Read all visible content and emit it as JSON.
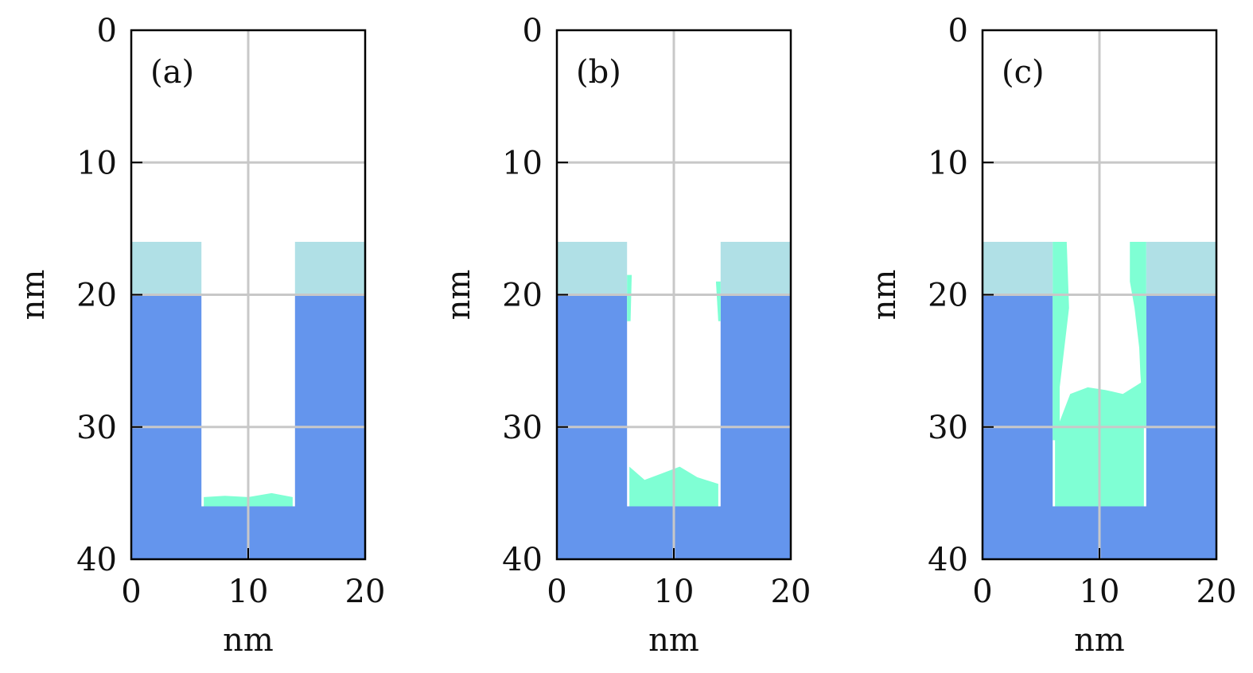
{
  "colors": {
    "substrate": "#6495ED",
    "mask": "#B0E0E6",
    "deposit": "#7FFFD4",
    "grid": "#C8C8C8",
    "frame": "#000000",
    "particle": "#222222"
  },
  "chart_data": [
    {
      "type": "heatmap",
      "panel_label": "(a)",
      "xlabel": "nm",
      "ylabel": "nm",
      "xlim": [
        0,
        20
      ],
      "ylim": [
        40,
        0
      ],
      "y_inverted": true,
      "xticks": [
        "0",
        "10",
        "20"
      ],
      "yticks": [
        "0",
        "10",
        "20",
        "30",
        "40"
      ],
      "grid": true,
      "regions": {
        "mask": {
          "y_top": 16,
          "y_bottom": 20,
          "x_ranges": [
            [
              0,
              6
            ],
            [
              14,
              20
            ]
          ]
        },
        "substrate": {
          "y_top": 20,
          "y_bottom": 40,
          "trench_x": [
            6,
            14
          ],
          "trench_bottom": 36
        }
      },
      "deposit": {
        "bottom": [
          [
            6.2,
            35.3
          ],
          [
            8,
            35.2
          ],
          [
            10,
            35.3
          ],
          [
            12,
            35.0
          ],
          [
            13.8,
            35.3
          ]
        ],
        "left_wall": [],
        "right_wall": []
      }
    },
    {
      "type": "heatmap",
      "panel_label": "(b)",
      "xlabel": "nm",
      "ylabel": "nm",
      "xlim": [
        0,
        20
      ],
      "ylim": [
        40,
        0
      ],
      "y_inverted": true,
      "xticks": [
        "0",
        "10",
        "20"
      ],
      "yticks": [
        "0",
        "10",
        "20",
        "30",
        "40"
      ],
      "grid": true,
      "regions": {
        "mask": {
          "y_top": 16,
          "y_bottom": 20,
          "x_ranges": [
            [
              0,
              6
            ],
            [
              14,
              20
            ]
          ]
        },
        "substrate": {
          "y_top": 20,
          "y_bottom": 40,
          "trench_x": [
            6,
            14
          ],
          "trench_bottom": 36
        }
      },
      "deposit": {
        "bottom": [
          [
            6.2,
            33.0
          ],
          [
            7.5,
            34.0
          ],
          [
            9,
            33.5
          ],
          [
            10.5,
            33.0
          ],
          [
            12,
            33.8
          ],
          [
            13.8,
            34.3
          ]
        ],
        "left_wall": [
          [
            18.5,
            6.4
          ],
          [
            22,
            6.3
          ]
        ],
        "right_wall": [
          [
            19,
            13.6
          ],
          [
            22,
            13.8
          ]
        ]
      }
    },
    {
      "type": "heatmap",
      "panel_label": "(c)",
      "xlabel": "nm",
      "ylabel": "nm",
      "xlim": [
        0,
        20
      ],
      "ylim": [
        40,
        0
      ],
      "y_inverted": true,
      "xticks": [
        "0",
        "10",
        "20"
      ],
      "yticks": [
        "0",
        "10",
        "20",
        "30",
        "40"
      ],
      "grid": true,
      "regions": {
        "mask": {
          "y_top": 16,
          "y_bottom": 20,
          "x_ranges": [
            [
              0,
              6
            ],
            [
              14,
              20
            ]
          ]
        },
        "substrate": {
          "y_top": 20,
          "y_bottom": 40,
          "trench_x": [
            6,
            14
          ],
          "trench_bottom": 36
        }
      },
      "deposit": {
        "bottom": [
          [
            6.2,
            30.5
          ],
          [
            7.5,
            27.5
          ],
          [
            9,
            27.0
          ],
          [
            10.5,
            27.2
          ],
          [
            12,
            27.5
          ],
          [
            13.8,
            26.5
          ]
        ],
        "left_wall": [
          [
            16,
            7.2
          ],
          [
            21,
            7.4
          ],
          [
            27,
            6.6
          ],
          [
            31,
            6.6
          ]
        ],
        "right_wall": [
          [
            16,
            12.6
          ],
          [
            19,
            12.6
          ],
          [
            21,
            13.0
          ],
          [
            24,
            13.4
          ],
          [
            26,
            13.5
          ],
          [
            30,
            13.8
          ]
        ]
      }
    }
  ]
}
